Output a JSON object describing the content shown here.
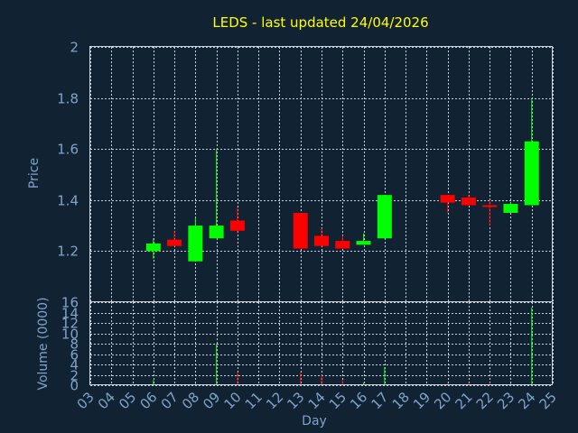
{
  "chart_data": {
    "type": "candlestick",
    "title": "LEDS - last updated 24/04/2026",
    "price_panel": {
      "ylabel": "Price",
      "ylim": [
        1.0,
        2.0
      ],
      "yticks": [
        "1.2",
        "1.4",
        "1.6",
        "1.8",
        "2"
      ]
    },
    "volume_panel": {
      "ylabel": "Volume (0000)",
      "ylim": [
        0,
        16
      ],
      "yticks": [
        "0",
        "2",
        "4",
        "6",
        "8",
        "10",
        "12",
        "14",
        "16"
      ]
    },
    "xlabel": "Day",
    "days": [
      "03",
      "04",
      "05",
      "06",
      "07",
      "08",
      "09",
      "10",
      "11",
      "12",
      "13",
      "14",
      "15",
      "16",
      "17",
      "18",
      "19",
      "20",
      "21",
      "22",
      "23",
      "24",
      "25"
    ],
    "candles": [
      {
        "day": "06",
        "open": 1.2,
        "high": 1.25,
        "low": 1.17,
        "close": 1.23,
        "volume": 1.0
      },
      {
        "day": "07",
        "open": 1.245,
        "high": 1.28,
        "low": 1.22,
        "close": 1.22,
        "volume": 0.2
      },
      {
        "day": "08",
        "open": 1.16,
        "high": 1.33,
        "low": 1.16,
        "close": 1.3,
        "volume": 0.3
      },
      {
        "day": "09",
        "open": 1.25,
        "high": 1.6,
        "low": 1.25,
        "close": 1.3,
        "volume": 8.0
      },
      {
        "day": "10",
        "open": 1.32,
        "high": 1.37,
        "low": 1.27,
        "close": 1.28,
        "volume": 2.5
      },
      {
        "day": "13",
        "open": 1.35,
        "high": 1.35,
        "low": 1.21,
        "close": 1.21,
        "volume": 2.5
      },
      {
        "day": "14",
        "open": 1.26,
        "high": 1.29,
        "low": 1.22,
        "close": 1.22,
        "volume": 2.0
      },
      {
        "day": "15",
        "open": 1.24,
        "high": 1.26,
        "low": 1.21,
        "close": 1.21,
        "volume": 1.0
      },
      {
        "day": "16",
        "open": 1.225,
        "high": 1.27,
        "low": 1.225,
        "close": 1.24,
        "volume": 0.5
      },
      {
        "day": "17",
        "open": 1.25,
        "high": 1.42,
        "low": 1.25,
        "close": 1.42,
        "volume": 3.5
      },
      {
        "day": "20",
        "open": 1.42,
        "high": 1.42,
        "low": 1.35,
        "close": 1.39,
        "volume": 0.5
      },
      {
        "day": "21",
        "open": 1.41,
        "high": 1.42,
        "low": 1.38,
        "close": 1.38,
        "volume": 0.5
      },
      {
        "day": "22",
        "open": 1.38,
        "high": 1.4,
        "low": 1.3,
        "close": 1.375,
        "volume": 0.5
      },
      {
        "day": "23",
        "open": 1.35,
        "high": 1.39,
        "low": 1.35,
        "close": 1.385,
        "volume": 0.3
      },
      {
        "day": "24",
        "open": 1.38,
        "high": 1.8,
        "low": 1.38,
        "close": 1.63,
        "volume": 15.0
      }
    ],
    "colors": {
      "up": "#00ff00",
      "down": "#ff0000",
      "background": "#112233",
      "title": "#ffff00",
      "axis_text": "#7fa3c9",
      "grid": "#c8d2dc"
    },
    "grid": true
  }
}
